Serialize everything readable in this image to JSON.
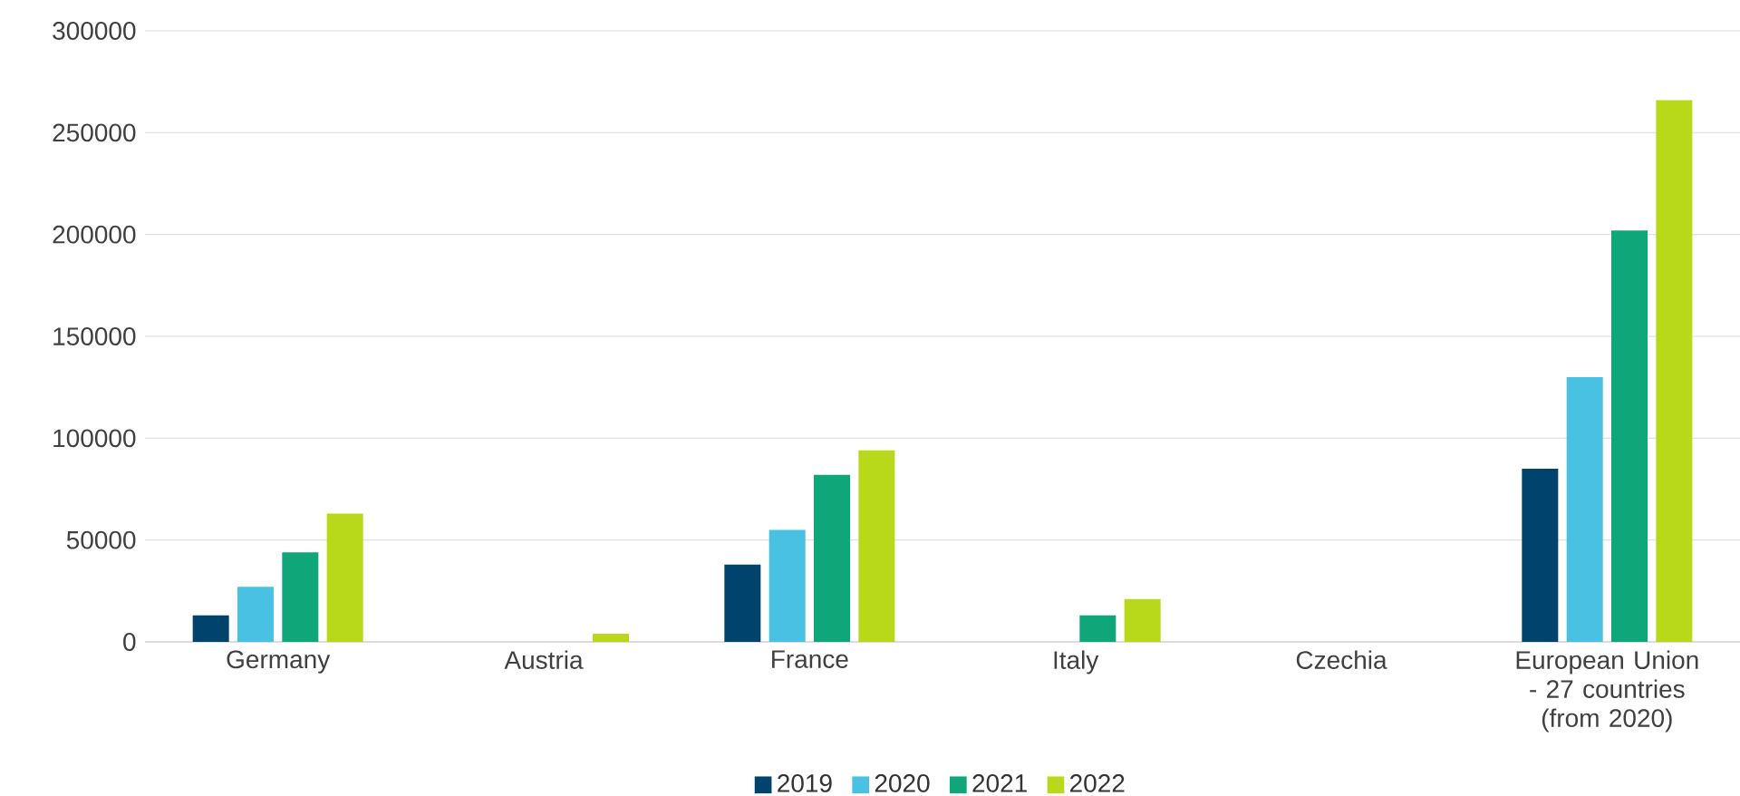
{
  "chart_data": {
    "type": "bar",
    "categories": [
      "Germany",
      "Austria",
      "France",
      "Italy",
      "Czechia",
      "European Union - 27 countries (from 2020)"
    ],
    "series": [
      {
        "name": "2019",
        "color": "#00446e",
        "values": [
          13000,
          null,
          38000,
          null,
          null,
          85000
        ]
      },
      {
        "name": "2020",
        "color": "#48c1e3",
        "values": [
          27000,
          null,
          55000,
          null,
          null,
          130000
        ]
      },
      {
        "name": "2021",
        "color": "#0fa77a",
        "values": [
          44000,
          null,
          82000,
          13000,
          null,
          202000
        ]
      },
      {
        "name": "2022",
        "color": "#b8d91a",
        "values": [
          63000,
          4000,
          94000,
          21000,
          null,
          266000
        ]
      }
    ],
    "ylim": [
      0,
      300000
    ],
    "yticks": [
      0,
      50000,
      100000,
      150000,
      200000,
      250000,
      300000
    ],
    "grid": "y",
    "legend": "bottom"
  }
}
